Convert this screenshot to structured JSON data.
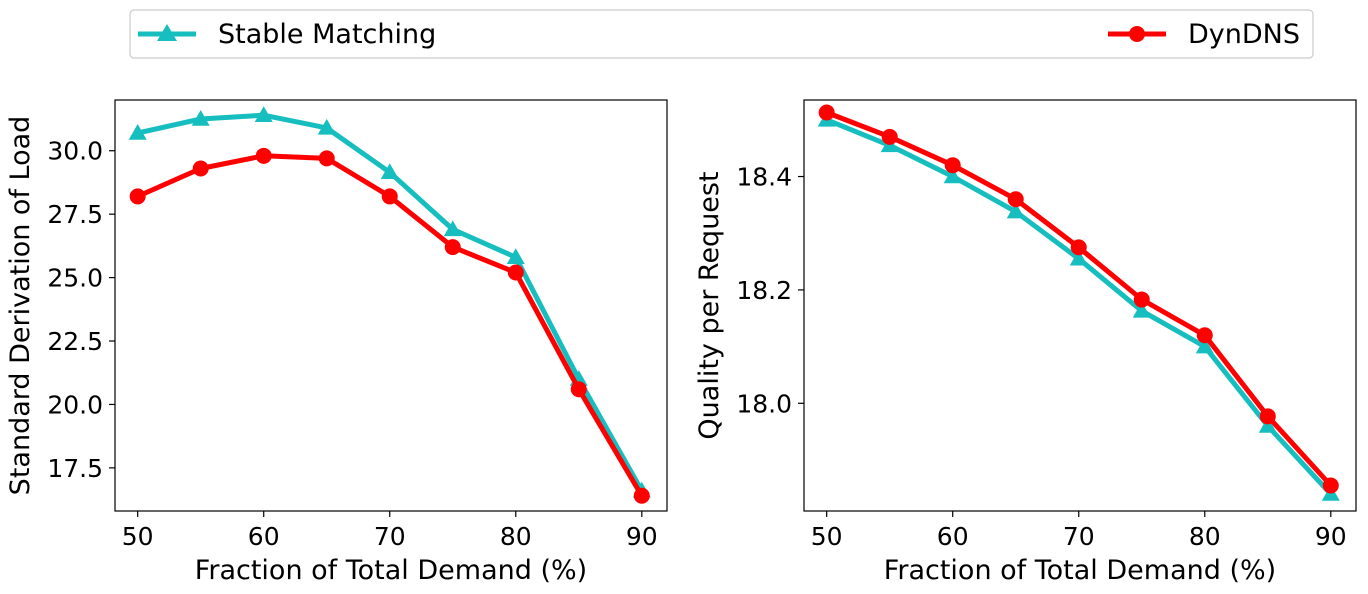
{
  "legend": {
    "entries": [
      {
        "name": "Stable Matching",
        "color": "#17BEC0",
        "marker": "triangle"
      },
      {
        "name": "DynDNS",
        "color": "#FF0000",
        "marker": "circle"
      }
    ]
  },
  "chart_data": [
    {
      "type": "line",
      "xlabel": "Fraction of Total Demand (%)",
      "ylabel": "Standard Derivation of Load",
      "xlim": [
        48.2,
        92.0
      ],
      "ylim": [
        15.8,
        32.0
      ],
      "xticks": [
        50,
        60,
        70,
        80,
        90
      ],
      "xtick_labels": [
        "50",
        "60",
        "70",
        "80",
        "90"
      ],
      "yticks": [
        17.5,
        20.0,
        22.5,
        25.0,
        27.5,
        30.0
      ],
      "ytick_labels": [
        "17.5",
        "20.0",
        "22.5",
        "25.0",
        "27.5",
        "30.0"
      ],
      "x": [
        50,
        55,
        60,
        65,
        70,
        75,
        80,
        85,
        90
      ],
      "series": [
        {
          "name": "Stable Matching",
          "color": "#17BEC0",
          "marker": "triangle",
          "values": [
            30.7,
            31.25,
            31.4,
            30.9,
            29.15,
            26.9,
            25.8,
            21.0,
            16.6
          ]
        },
        {
          "name": "DynDNS",
          "color": "#FF0000",
          "marker": "circle",
          "values": [
            28.2,
            29.3,
            29.8,
            29.7,
            28.2,
            26.2,
            25.2,
            20.6,
            16.4
          ]
        }
      ]
    },
    {
      "type": "line",
      "xlabel": "Fraction of Total Demand (%)",
      "ylabel": "Quality per Request",
      "xlim": [
        48.2,
        92.0
      ],
      "ylim": [
        17.81,
        18.535
      ],
      "xticks": [
        50,
        60,
        70,
        80,
        90
      ],
      "xtick_labels": [
        "50",
        "60",
        "70",
        "80",
        "90"
      ],
      "yticks": [
        18.0,
        18.2,
        18.4
      ],
      "ytick_labels": [
        "18.0",
        "18.2",
        "18.4"
      ],
      "x": [
        50,
        55,
        60,
        65,
        70,
        75,
        80,
        85,
        90
      ],
      "series": [
        {
          "name": "Stable Matching",
          "color": "#17BEC0",
          "marker": "triangle",
          "values": [
            18.5,
            18.455,
            18.4,
            18.338,
            18.255,
            18.163,
            18.1,
            17.96,
            17.84
          ]
        },
        {
          "name": "DynDNS",
          "color": "#FF0000",
          "marker": "circle",
          "values": [
            18.513,
            18.47,
            18.42,
            18.36,
            18.275,
            18.183,
            18.12,
            17.977,
            17.855
          ]
        }
      ]
    }
  ]
}
